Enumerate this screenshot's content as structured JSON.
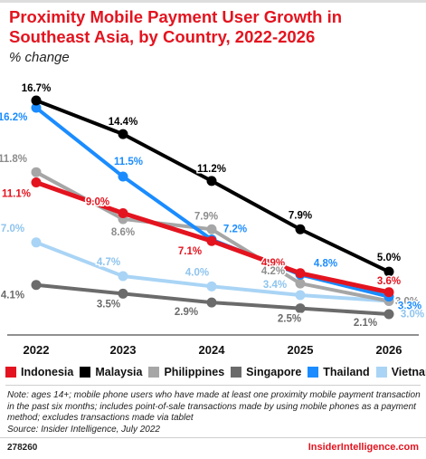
{
  "header": {
    "title": "Proximity Mobile Payment User Growth in Southeast Asia, by Country, 2022-2026",
    "subtitle": "% change"
  },
  "chart_data": {
    "type": "line",
    "title": "Proximity Mobile Payment User Growth in Southeast Asia, by Country, 2022-2026",
    "subtitle": "% change",
    "x": [
      "2022",
      "2023",
      "2024",
      "2025",
      "2026"
    ],
    "ylim": [
      0,
      18
    ],
    "grid": false,
    "legend_placement": "bottom",
    "series": [
      {
        "name": "Indonesia",
        "color": "#e3141f",
        "values": [
          11.1,
          9.0,
          7.1,
          4.9,
          3.6
        ],
        "labels": [
          "11.1%",
          "9.0%",
          "7.1%",
          "4.9%",
          "3.6%"
        ]
      },
      {
        "name": "Malaysia",
        "color": "#000000",
        "values": [
          16.7,
          14.4,
          11.2,
          7.9,
          5.0
        ],
        "labels": [
          "16.7%",
          "14.4%",
          "11.2%",
          "7.9%",
          "5.0%"
        ]
      },
      {
        "name": "Philippines",
        "color": "#a6a6a6",
        "values": [
          11.8,
          8.6,
          7.9,
          4.2,
          3.0
        ],
        "labels": [
          "11.8%",
          "8.6%",
          "7.9%",
          "4.2%",
          "3.0%"
        ]
      },
      {
        "name": "Singapore",
        "color": "#6b6b6b",
        "values": [
          4.1,
          3.5,
          2.9,
          2.5,
          2.1
        ],
        "labels": [
          "4.1%",
          "3.5%",
          "2.9%",
          "2.5%",
          "2.1%"
        ]
      },
      {
        "name": "Thailand",
        "color": "#1a8cff",
        "values": [
          16.2,
          11.5,
          7.2,
          4.8,
          3.3
        ],
        "labels": [
          "16.2%",
          "11.5%",
          "7.2%",
          "4.8%",
          "3.3%"
        ]
      },
      {
        "name": "Vietnam",
        "color": "#a9d4f5",
        "values": [
          7.0,
          4.7,
          4.0,
          3.4,
          3.0
        ],
        "labels": [
          "7.0%",
          "4.7%",
          "4.0%",
          "3.4%",
          "3.0%"
        ]
      }
    ]
  },
  "note": "Note: ages 14+; mobile phone users who have made at least one proximity mobile payment transaction in the past six months; includes point-of-sale transactions made by using mobile phones as a payment method; excludes transactions made via tablet",
  "source": "Source: Insider Intelligence, July 2022",
  "footer": {
    "chart_id": "278260",
    "brand": "InsiderIntelligence.com"
  }
}
